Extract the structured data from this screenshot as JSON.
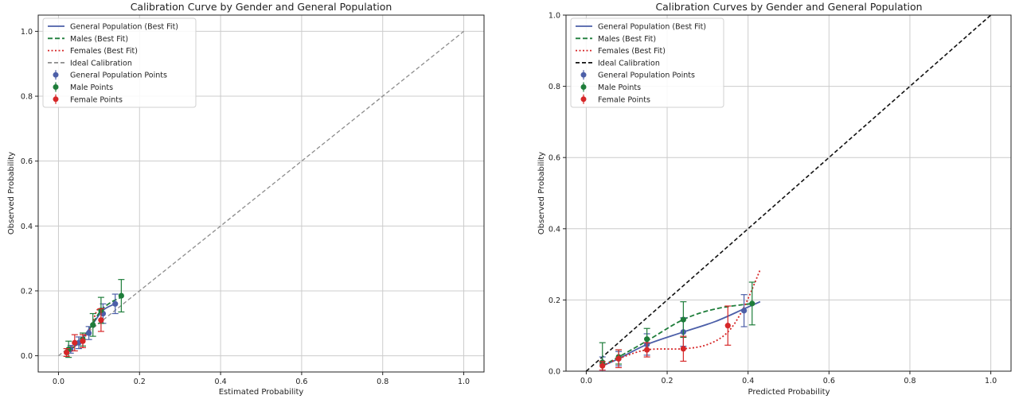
{
  "chart_data": [
    {
      "type": "line",
      "title": "Calibration Curve by Gender and General Population",
      "xlabel": "Estimated Probability",
      "ylabel": "Observed Probability",
      "xlim": [
        -0.05,
        1.05
      ],
      "ylim": [
        -0.05,
        1.05
      ],
      "xticks": [
        "0.0",
        "0.2",
        "0.4",
        "0.6",
        "0.8",
        "1.0"
      ],
      "yticks": [
        "0.0",
        "0.2",
        "0.4",
        "0.6",
        "0.8",
        "1.0"
      ],
      "grid": true,
      "legend_position": "top-left",
      "legend": [
        "General Population (Best Fit)",
        "Males (Best Fit)",
        "Females (Best Fit)",
        "Ideal Calibration",
        "General Population Points",
        "Male Points",
        "Female Points"
      ],
      "colors": {
        "general": "#4c5fa8",
        "male": "#1e7d3a",
        "female": "#d62728",
        "ideal": "#8c8c8c"
      },
      "curves": {
        "general": {
          "x": [
            0.02,
            0.05,
            0.08,
            0.11,
            0.14
          ],
          "y": [
            0.01,
            0.04,
            0.09,
            0.14,
            0.16
          ]
        },
        "male": {
          "x": [
            0.03,
            0.06,
            0.085,
            0.105,
            0.13,
            0.155
          ],
          "y": [
            0.02,
            0.05,
            0.1,
            0.14,
            0.165,
            0.18
          ]
        },
        "female": {
          "x": [
            0.02,
            0.04,
            0.06,
            0.08,
            0.095,
            0.105
          ],
          "y": [
            0.01,
            0.035,
            0.05,
            0.09,
            0.14,
            0.145
          ]
        },
        "ideal": {
          "x": [
            0.0,
            1.0
          ],
          "y": [
            0.0,
            1.0
          ]
        }
      },
      "points": {
        "general": [
          {
            "x": 0.03,
            "y": 0.02,
            "err": 0.012
          },
          {
            "x": 0.05,
            "y": 0.04,
            "err": 0.018
          },
          {
            "x": 0.075,
            "y": 0.07,
            "err": 0.02
          },
          {
            "x": 0.11,
            "y": 0.13,
            "err": 0.03
          },
          {
            "x": 0.14,
            "y": 0.16,
            "err": 0.03
          }
        ],
        "male": [
          {
            "x": 0.025,
            "y": 0.02,
            "err": 0.025
          },
          {
            "x": 0.06,
            "y": 0.05,
            "err": 0.02
          },
          {
            "x": 0.085,
            "y": 0.095,
            "err": 0.035
          },
          {
            "x": 0.105,
            "y": 0.14,
            "err": 0.04
          },
          {
            "x": 0.155,
            "y": 0.185,
            "err": 0.05
          }
        ],
        "female": [
          {
            "x": 0.02,
            "y": 0.01,
            "err": 0.012
          },
          {
            "x": 0.04,
            "y": 0.04,
            "err": 0.025
          },
          {
            "x": 0.06,
            "y": 0.045,
            "err": 0.02
          },
          {
            "x": 0.105,
            "y": 0.11,
            "err": 0.035
          }
        ]
      }
    },
    {
      "type": "line",
      "title": "Calibration Curves by Gender and General Population",
      "xlabel": "Predicted Probability",
      "ylabel": "Observed Probability",
      "xlim": [
        -0.05,
        1.05
      ],
      "ylim": [
        0.0,
        1.0
      ],
      "xticks": [
        "0.0",
        "0.2",
        "0.4",
        "0.6",
        "0.8",
        "1.0"
      ],
      "yticks": [
        "0.0",
        "0.2",
        "0.4",
        "0.6",
        "0.8",
        "1.0"
      ],
      "grid": true,
      "legend_position": "top-left",
      "legend": [
        "General Population (Best Fit)",
        "Males (Best Fit)",
        "Females (Best Fit)",
        "Ideal Calibration",
        "General Population Points",
        "Male Points",
        "Female Points"
      ],
      "colors": {
        "general": "#4c5fa8",
        "male": "#1e7d3a",
        "female": "#d62728",
        "ideal": "#111111"
      },
      "curves": {
        "general": {
          "x": [
            0.04,
            0.08,
            0.15,
            0.24,
            0.32,
            0.39,
            0.43
          ],
          "y": [
            0.015,
            0.035,
            0.075,
            0.11,
            0.14,
            0.175,
            0.195
          ]
        },
        "male": {
          "x": [
            0.04,
            0.08,
            0.15,
            0.24,
            0.32,
            0.41
          ],
          "y": [
            0.015,
            0.04,
            0.085,
            0.145,
            0.175,
            0.19
          ]
        },
        "female": {
          "x": [
            0.04,
            0.08,
            0.15,
            0.24,
            0.3,
            0.35,
            0.39,
            0.43
          ],
          "y": [
            0.015,
            0.035,
            0.06,
            0.063,
            0.075,
            0.11,
            0.18,
            0.285
          ]
        },
        "ideal": {
          "x": [
            0.0,
            1.0
          ],
          "y": [
            0.0,
            1.0
          ]
        }
      },
      "points": {
        "general": [
          {
            "x": 0.04,
            "y": 0.02,
            "err": 0.02
          },
          {
            "x": 0.08,
            "y": 0.035,
            "err": 0.02
          },
          {
            "x": 0.15,
            "y": 0.075,
            "err": 0.03
          },
          {
            "x": 0.24,
            "y": 0.11,
            "err": 0.04
          },
          {
            "x": 0.39,
            "y": 0.17,
            "err": 0.045
          }
        ],
        "male": [
          {
            "x": 0.04,
            "y": 0.025,
            "err": 0.055
          },
          {
            "x": 0.08,
            "y": 0.04,
            "err": 0.02
          },
          {
            "x": 0.15,
            "y": 0.09,
            "err": 0.03
          },
          {
            "x": 0.24,
            "y": 0.145,
            "err": 0.05
          },
          {
            "x": 0.41,
            "y": 0.19,
            "err": 0.06
          }
        ],
        "female": [
          {
            "x": 0.04,
            "y": 0.015,
            "err": 0.012
          },
          {
            "x": 0.08,
            "y": 0.035,
            "err": 0.025
          },
          {
            "x": 0.15,
            "y": 0.06,
            "err": 0.02
          },
          {
            "x": 0.24,
            "y": 0.063,
            "err": 0.035
          },
          {
            "x": 0.35,
            "y": 0.128,
            "err": 0.055
          }
        ]
      }
    }
  ]
}
